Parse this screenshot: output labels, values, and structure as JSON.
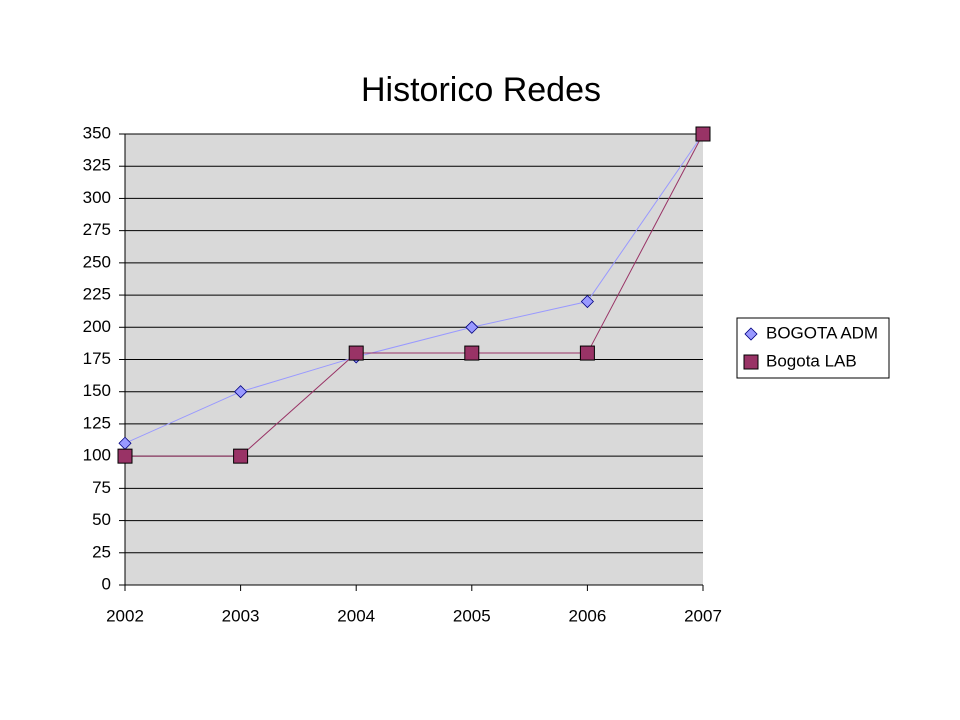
{
  "chart_data": {
    "type": "line",
    "title": "Historico Redes",
    "x": [
      2002,
      2003,
      2004,
      2005,
      2006,
      2007
    ],
    "xlim": [
      2002,
      2007
    ],
    "xticks": [
      2002,
      2003,
      2004,
      2005,
      2006,
      2007
    ],
    "ylim": [
      0,
      350
    ],
    "yticks": [
      0,
      25,
      50,
      75,
      100,
      125,
      150,
      175,
      200,
      225,
      250,
      275,
      300,
      325,
      350
    ],
    "grid": true,
    "legend": "right",
    "series": [
      {
        "name": "BOGOTA ADM",
        "color": "#9999ff",
        "marker": "diamond",
        "values": [
          110,
          150,
          177,
          200,
          220,
          350
        ]
      },
      {
        "name": "Bogota LAB",
        "color": "#993366",
        "marker": "square",
        "values": [
          100,
          100,
          180,
          180,
          180,
          350
        ]
      }
    ]
  }
}
